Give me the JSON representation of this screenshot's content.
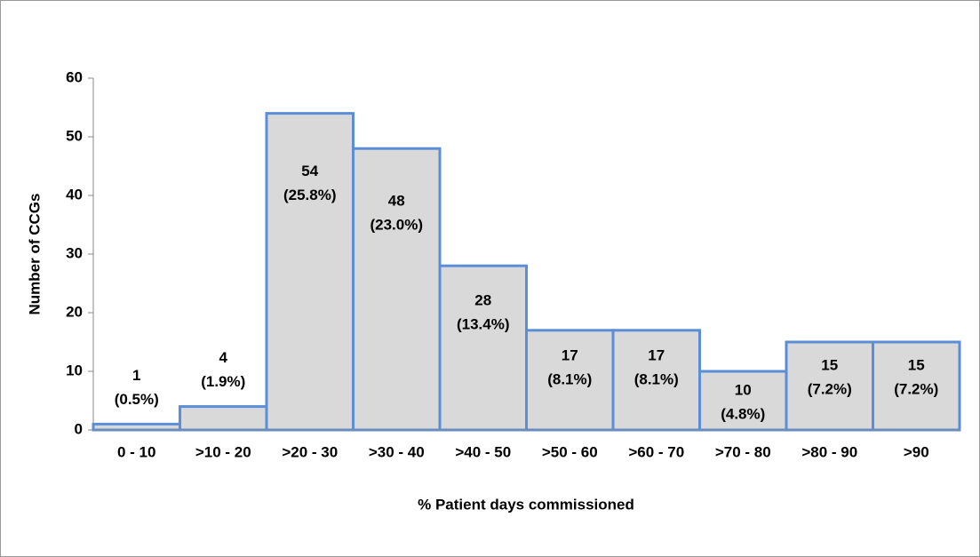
{
  "chart_data": {
    "type": "bar",
    "x_label": "% Patient days commissioned",
    "y_label": "Number of CCGs",
    "categories": [
      "0 - 10",
      ">10 - 20",
      ">20 - 30",
      ">30 - 40",
      ">40 - 50",
      ">50 - 60",
      ">60 - 70",
      ">70 - 80",
      ">80 - 90",
      ">90"
    ],
    "values": [
      1,
      4,
      54,
      48,
      28,
      17,
      17,
      10,
      15,
      15
    ],
    "percent_labels": [
      "(0.5%)",
      "(1.9%)",
      "(25.8%)",
      "(23.0%)",
      "(13.4%)",
      "(8.1%)",
      "(8.1%)",
      "(4.8%)",
      "(7.2%)",
      "(7.2%)"
    ],
    "color": "#d9d9d9",
    "edge_color": "#5b8ed6",
    "ylim": [
      0,
      60
    ],
    "yticks": [
      0,
      10,
      20,
      30,
      40,
      50,
      60
    ],
    "grid": false
  }
}
